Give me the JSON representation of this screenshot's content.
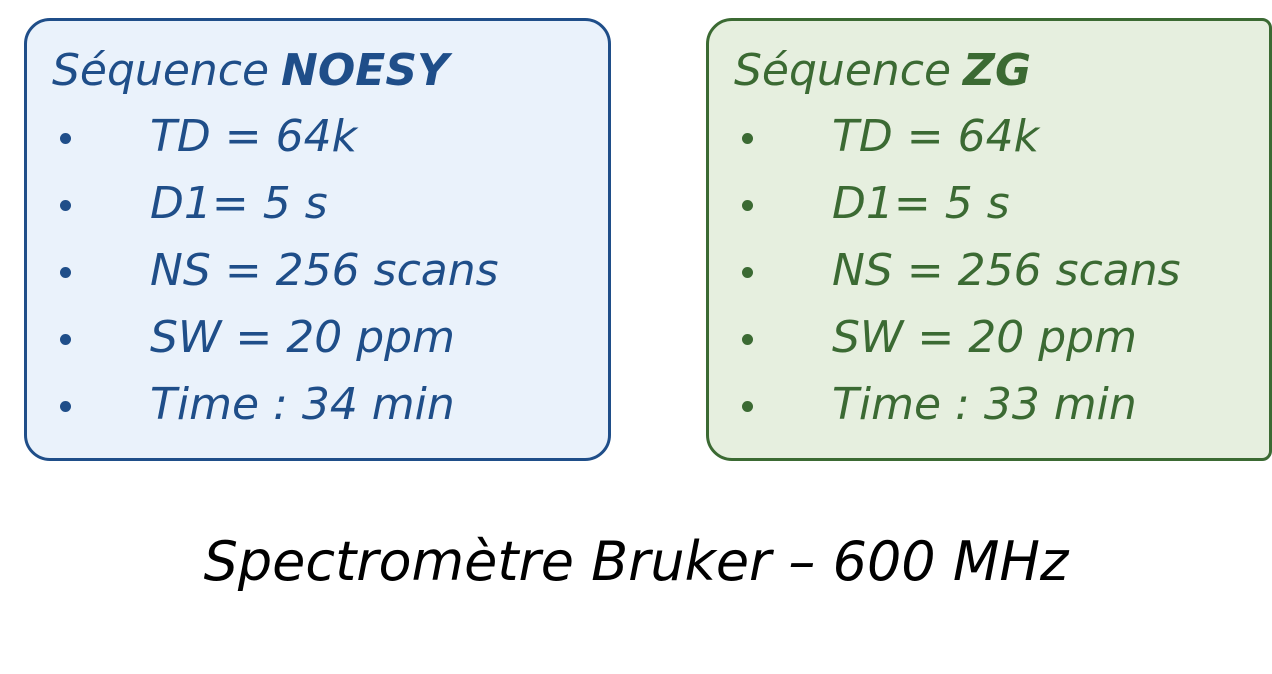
{
  "boxes": [
    {
      "title_prefix": "Séquence",
      "title_emphasis": "NOESY",
      "items": [
        "TD = 64k",
        "D1= 5 s",
        "NS = 256 scans",
        "SW = 20 ppm",
        "Time : 34 min"
      ]
    },
    {
      "title_prefix": "Séquence",
      "title_emphasis": "ZG",
      "items": [
        "TD = 64k",
        "D1= 5 s",
        "NS = 256 scans",
        "SW = 20 ppm",
        "Time : 33 min"
      ]
    }
  ],
  "footer": "Spectromètre Bruker – 600 MHz"
}
